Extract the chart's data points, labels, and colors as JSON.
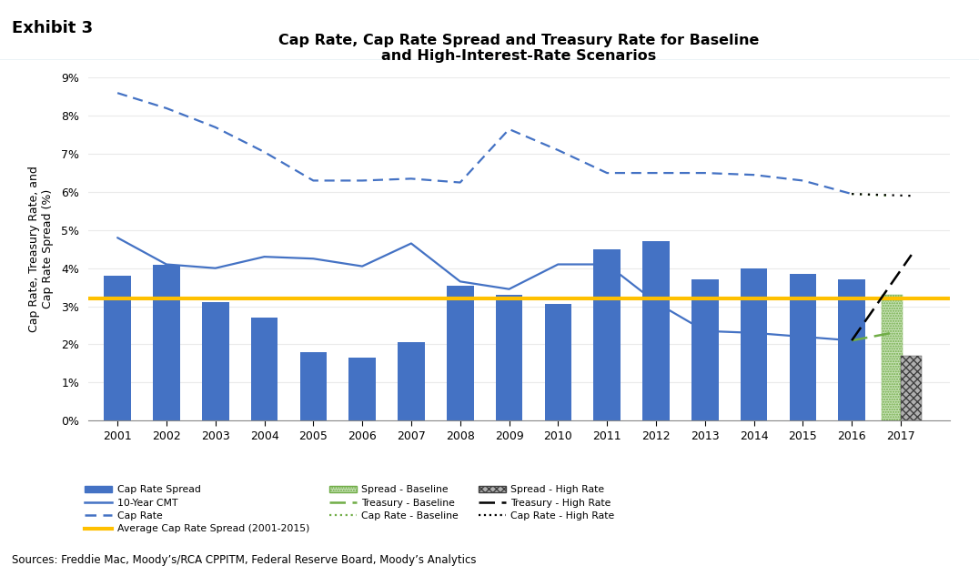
{
  "years_historical": [
    2001,
    2002,
    2003,
    2004,
    2005,
    2006,
    2007,
    2008,
    2009,
    2010,
    2011,
    2012,
    2013,
    2014,
    2015,
    2016
  ],
  "year_forecast": [
    2017
  ],
  "cap_rate_spread_historical": [
    3.8,
    4.1,
    3.1,
    2.7,
    1.8,
    1.65,
    2.05,
    3.55,
    3.3,
    3.05,
    4.5,
    4.7,
    3.7,
    4.0,
    3.85,
    3.7
  ],
  "cap_rate_spread_baseline_2017": 3.3,
  "cap_rate_spread_highrate_2017": 1.7,
  "ten_year_cmt_historical": [
    4.8,
    4.1,
    4.0,
    4.3,
    4.25,
    4.05,
    4.65,
    3.65,
    3.45,
    4.1,
    4.1,
    3.1,
    2.35,
    2.3,
    2.2,
    2.1
  ],
  "ten_year_cmt_baseline_2017": 2.3,
  "ten_year_cmt_highrate_2017": 4.35,
  "cap_rate_historical": [
    8.6,
    8.2,
    7.7,
    7.05,
    6.3,
    6.3,
    6.35,
    6.25,
    7.65,
    7.1,
    6.5,
    6.5,
    6.5,
    6.45,
    6.3,
    5.95
  ],
  "cap_rate_baseline_2017": 5.9,
  "cap_rate_highrate_2017": 5.9,
  "avg_cap_rate_spread": 3.2,
  "bar_color": "#4472C4",
  "bar_color_baseline": "#c6e0b4",
  "bar_color_highrate": "#595959",
  "line_color_cmt": "#4472C4",
  "line_color_cap_rate": "#4472C4",
  "line_color_avg": "#FFC000",
  "line_color_treasury_baseline": "#70AD47",
  "line_color_treasury_highrate": "#000000",
  "line_color_cap_baseline": "#70AD47",
  "line_color_cap_highrate": "#000000",
  "title": "Cap Rate, Cap Rate Spread and Treasury Rate for Baseline\nand High-Interest-Rate Scenarios",
  "ylabel": "Cap Rate, Treasury Rate, and\nCap Rate Spread (%)",
  "ylim_min": 0,
  "ylim_max": 9,
  "ytick_labels": [
    "0%",
    "1%",
    "2%",
    "3%",
    "4%",
    "5%",
    "6%",
    "7%",
    "8%",
    "9%"
  ],
  "header_text": "Exhibit 3",
  "source_text": "Sources: Freddie Mac, Moody’s/RCA CPPITM, Federal Reserve Board, Moody’s Analytics",
  "header_line_color": "#9DC3D4"
}
